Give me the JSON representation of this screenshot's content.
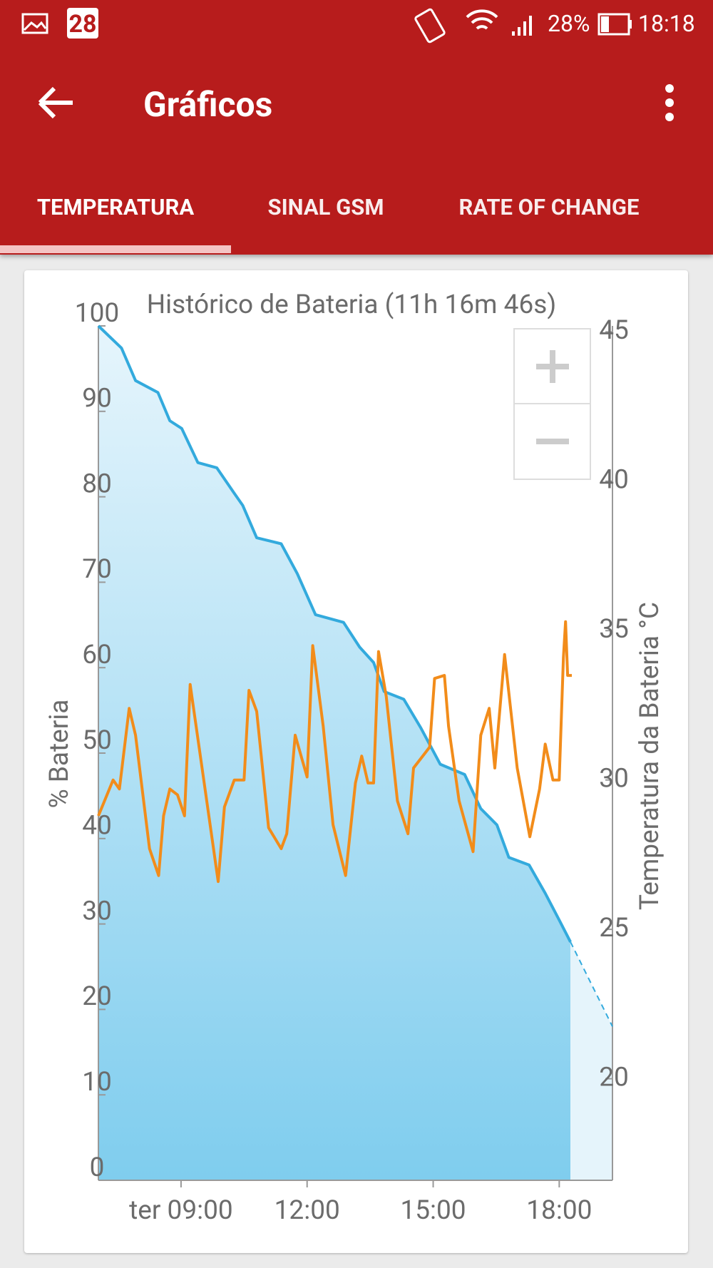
{
  "status_bar": {
    "calendar_day": "28",
    "battery": "28%",
    "time": "18:18"
  },
  "app_bar": {
    "title": "Gráficos"
  },
  "tabs": [
    "TEMPERATURA",
    "SINAL GSM",
    "RATE OF CHANGE"
  ],
  "chart_data": {
    "type": "line",
    "title": "Histórico de Bateria (11h 16m 46s)",
    "y_label": "% Bateria",
    "y2_label": "Temperatura da Bateria °C",
    "xlim": [
      "07:02",
      "19:16"
    ],
    "xticks": [
      {
        "value": "09:00",
        "label": "ter 09:00"
      },
      "12:00",
      "15:00",
      "18:00"
    ],
    "ylim": [
      0,
      100
    ],
    "yticks": [
      0,
      10,
      20,
      30,
      40,
      50,
      60,
      70,
      80,
      90,
      100
    ],
    "y2lim": [
      16.6,
      45.2
    ],
    "y2ticks": [
      20,
      25,
      30,
      35,
      40,
      45
    ],
    "series": [
      {
        "color": "#33aadd",
        "fill": true,
        "x": [
          "07:02",
          "07:35",
          "07:55",
          "08:27",
          "08:44",
          "09:01",
          "09:24",
          "09:51",
          "10:16",
          "10:28",
          "10:48",
          "11:23",
          "11:46",
          "12:12",
          "12:52",
          "13:15",
          "13:35",
          "13:50",
          "14:18",
          "14:42",
          "15:10",
          "15:45",
          "16:08",
          "16:31",
          "16:48",
          "17:17",
          "17:40",
          "18:01",
          "18:16"
        ],
        "values": [
          100,
          97.4,
          93.6,
          92.2,
          88.9,
          88.0,
          84.0,
          83.4,
          80.4,
          79.0,
          75.2,
          74.5,
          71.0,
          66.2,
          65.3,
          62.4,
          60.6,
          57.2,
          56.3,
          53.0,
          48.7,
          47.5,
          43.5,
          41.6,
          37.8,
          36.9,
          33.6,
          30.3,
          27.9
        ]
      },
      {
        "color": "#33aadd",
        "fill": true,
        "style": "dashed",
        "x": [
          "18:16",
          "19:16"
        ],
        "values": [
          27.9,
          18.0
        ]
      },
      {
        "color": "#f28c1a",
        "axis": "y2",
        "x": [
          "07:02",
          "07:23",
          "07:32",
          "07:46",
          "07:55",
          "08:15",
          "08:28",
          "08:35",
          "08:44",
          "08:55",
          "09:05",
          "09:13",
          "09:30",
          "09:53",
          "10:02",
          "10:16",
          "10:30",
          "10:37",
          "10:48",
          "11:05",
          "11:23",
          "11:31",
          "11:43",
          "12:00",
          "12:08",
          "12:23",
          "12:37",
          "12:55",
          "13:09",
          "13:18",
          "13:27",
          "13:35",
          "13:42",
          "13:53",
          "14:09",
          "14:24",
          "14:32",
          "14:55",
          "15:02",
          "15:16",
          "15:22",
          "15:37",
          "15:57",
          "16:08",
          "16:20",
          "16:28",
          "16:42",
          "17:00",
          "17:18",
          "17:32",
          "17:40",
          "17:51",
          "18:00",
          "18:06",
          "18:09",
          "18:12",
          "18:18"
        ],
        "values": [
          28.8,
          30.0,
          29.7,
          32.4,
          31.5,
          27.7,
          26.8,
          28.8,
          29.7,
          29.5,
          28.8,
          33.2,
          30.4,
          26.6,
          29.1,
          30.0,
          30.0,
          33.0,
          32.3,
          28.4,
          27.7,
          28.2,
          31.5,
          30.1,
          34.5,
          31.8,
          28.5,
          26.8,
          29.9,
          30.8,
          29.9,
          29.9,
          34.3,
          32.8,
          29.3,
          28.2,
          30.4,
          31.1,
          33.4,
          33.5,
          31.8,
          29.3,
          27.6,
          31.5,
          32.4,
          30.4,
          34.2,
          30.4,
          28.1,
          29.7,
          31.2,
          30.0,
          30.0,
          34.1,
          35.3,
          33.5,
          33.5
        ]
      }
    ]
  }
}
